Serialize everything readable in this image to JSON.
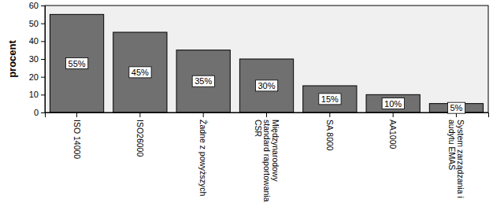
{
  "chart_data": {
    "type": "bar",
    "y_label": "procent",
    "categories": [
      "ISO 14000",
      "ISO26000",
      "Żadne z powyższych",
      "Międzynarodowy standard raportowania CSR",
      "SA 8000",
      "AA1000",
      "System zarządzania i audytu EMAS"
    ],
    "values": [
      55,
      45,
      35,
      30,
      15,
      10,
      5
    ],
    "value_labels": [
      "55%",
      "45%",
      "35%",
      "30%",
      "15%",
      "10%",
      "5%"
    ],
    "color": "#707070",
    "ylim": [
      0,
      60
    ],
    "yticks": [
      0,
      10,
      20,
      30,
      40,
      50,
      60
    ],
    "grid": false,
    "data_labels": true
  }
}
